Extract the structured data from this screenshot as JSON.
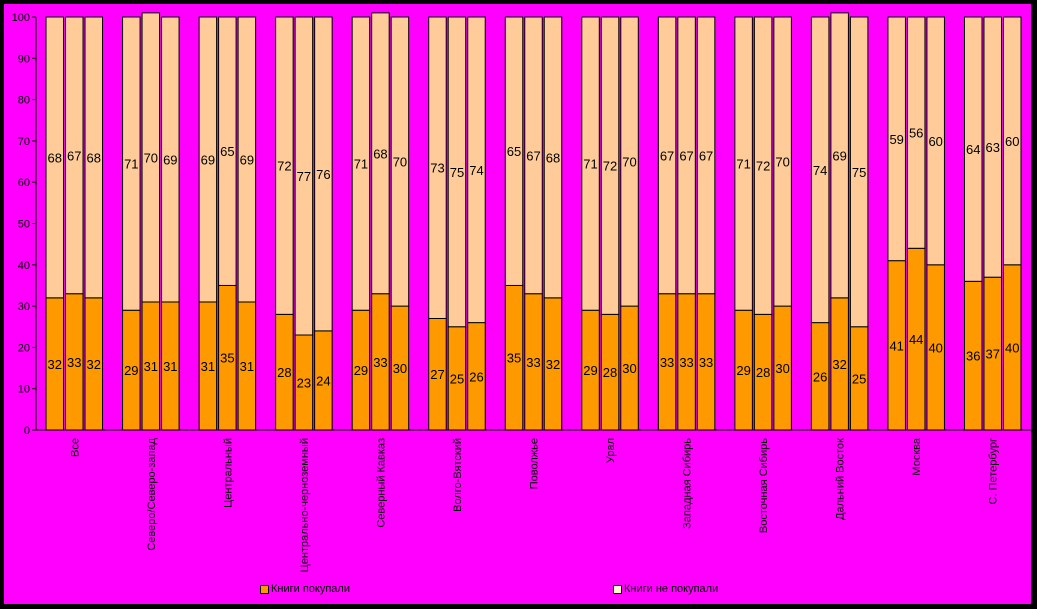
{
  "chart_data": {
    "type": "bar",
    "stacked": true,
    "grid": false,
    "ylim": [
      0,
      100
    ],
    "y_ticks": [
      0,
      10,
      20,
      30,
      40,
      50,
      60,
      70,
      80,
      90,
      100
    ],
    "categories": [
      "Все",
      "Северо/Северо-запад",
      "Центральный",
      "Центрально-черноземный",
      "Северный Кавказ",
      "Волго-Вятский",
      "Поволжье",
      "Урал",
      "Западная Сибирь",
      "Восточная Сибирь",
      "Дальний Восток",
      "Москва",
      "С. Петербург"
    ],
    "bars_per_category": 3,
    "series": [
      {
        "name": "Книги покупали",
        "color": "#ff9900",
        "values": [
          [
            32,
            33,
            32
          ],
          [
            29,
            31,
            31
          ],
          [
            31,
            35,
            31
          ],
          [
            28,
            23,
            24
          ],
          [
            29,
            33,
            30
          ],
          [
            27,
            25,
            26
          ],
          [
            35,
            33,
            32
          ],
          [
            29,
            28,
            30
          ],
          [
            33,
            33,
            33
          ],
          [
            29,
            28,
            30
          ],
          [
            26,
            32,
            25
          ],
          [
            41,
            44,
            40
          ],
          [
            36,
            37,
            40
          ]
        ]
      },
      {
        "name": "Книги не покупали",
        "color": "#ffcc99",
        "values": [
          [
            68,
            67,
            68
          ],
          [
            71,
            70,
            69
          ],
          [
            69,
            65,
            69
          ],
          [
            72,
            77,
            76
          ],
          [
            71,
            68,
            70
          ],
          [
            73,
            75,
            74
          ],
          [
            65,
            67,
            68
          ],
          [
            71,
            72,
            70
          ],
          [
            67,
            67,
            67
          ],
          [
            71,
            72,
            70
          ],
          [
            74,
            69,
            75
          ],
          [
            59,
            56,
            60
          ],
          [
            64,
            63,
            60
          ]
        ]
      }
    ],
    "legend_position": "bottom"
  },
  "legend": {
    "items": [
      {
        "label": "Книги покупали",
        "color": "#ff9900"
      },
      {
        "label": "Книги не покупали",
        "color": "#ffffcc"
      }
    ]
  }
}
